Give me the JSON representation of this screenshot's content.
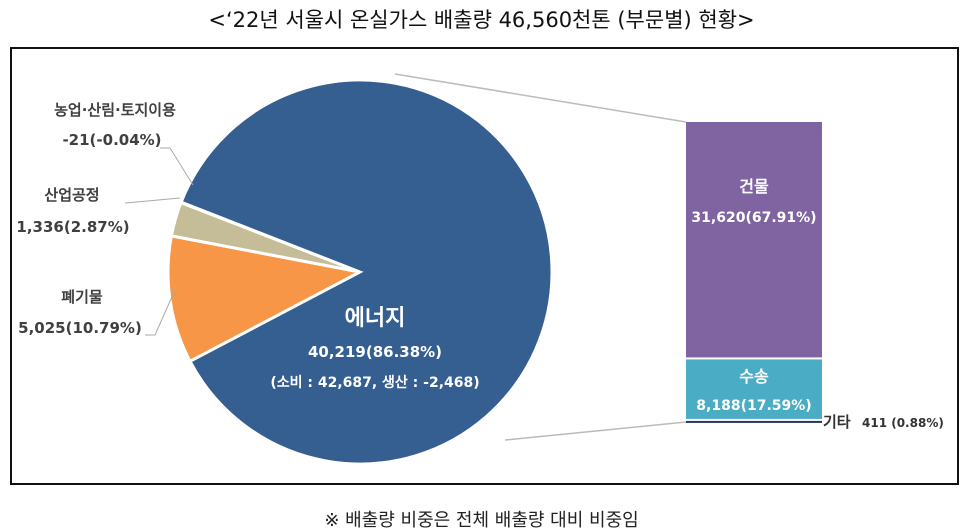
{
  "title": "<‘22년 서울시 온실가스 배출량 46,560천톤 (부문별) 현황>",
  "footnote": "※ 배출량 비중은 전체 배출량 대비 비중임",
  "chart_data": {
    "type": "bar-of-pie",
    "pie": [
      {
        "name": "에너지",
        "value": 40219,
        "percent": 86.38,
        "label": "40,219(86.38%)",
        "sub": "(소비 : 42,687, 생산 : -2,468)",
        "color": "#355F91"
      },
      {
        "name": "폐기물",
        "value": 5025,
        "percent": 10.79,
        "label": "5,025(10.79%)",
        "color": "#F79646"
      },
      {
        "name": "산업공정",
        "value": 1336,
        "percent": 2.87,
        "label": "1,336(2.87%)",
        "color": "#C4BD97"
      },
      {
        "name": "농업·산림·토지이용",
        "value": -21,
        "percent": -0.04,
        "label": "-21(-0.04%)",
        "color": "#9BBB59"
      }
    ],
    "bar": [
      {
        "name": "건물",
        "value": 31620,
        "percent": 67.91,
        "label": "31,620(67.91%)",
        "color": "#8064A2"
      },
      {
        "name": "수송",
        "value": 8188,
        "percent": 17.59,
        "label": "8,188(17.59%)",
        "color": "#4BACC6"
      },
      {
        "name": "기타",
        "value": 411,
        "percent": 0.88,
        "label": "411 (0.88%)",
        "color": "#1F3864"
      }
    ]
  }
}
